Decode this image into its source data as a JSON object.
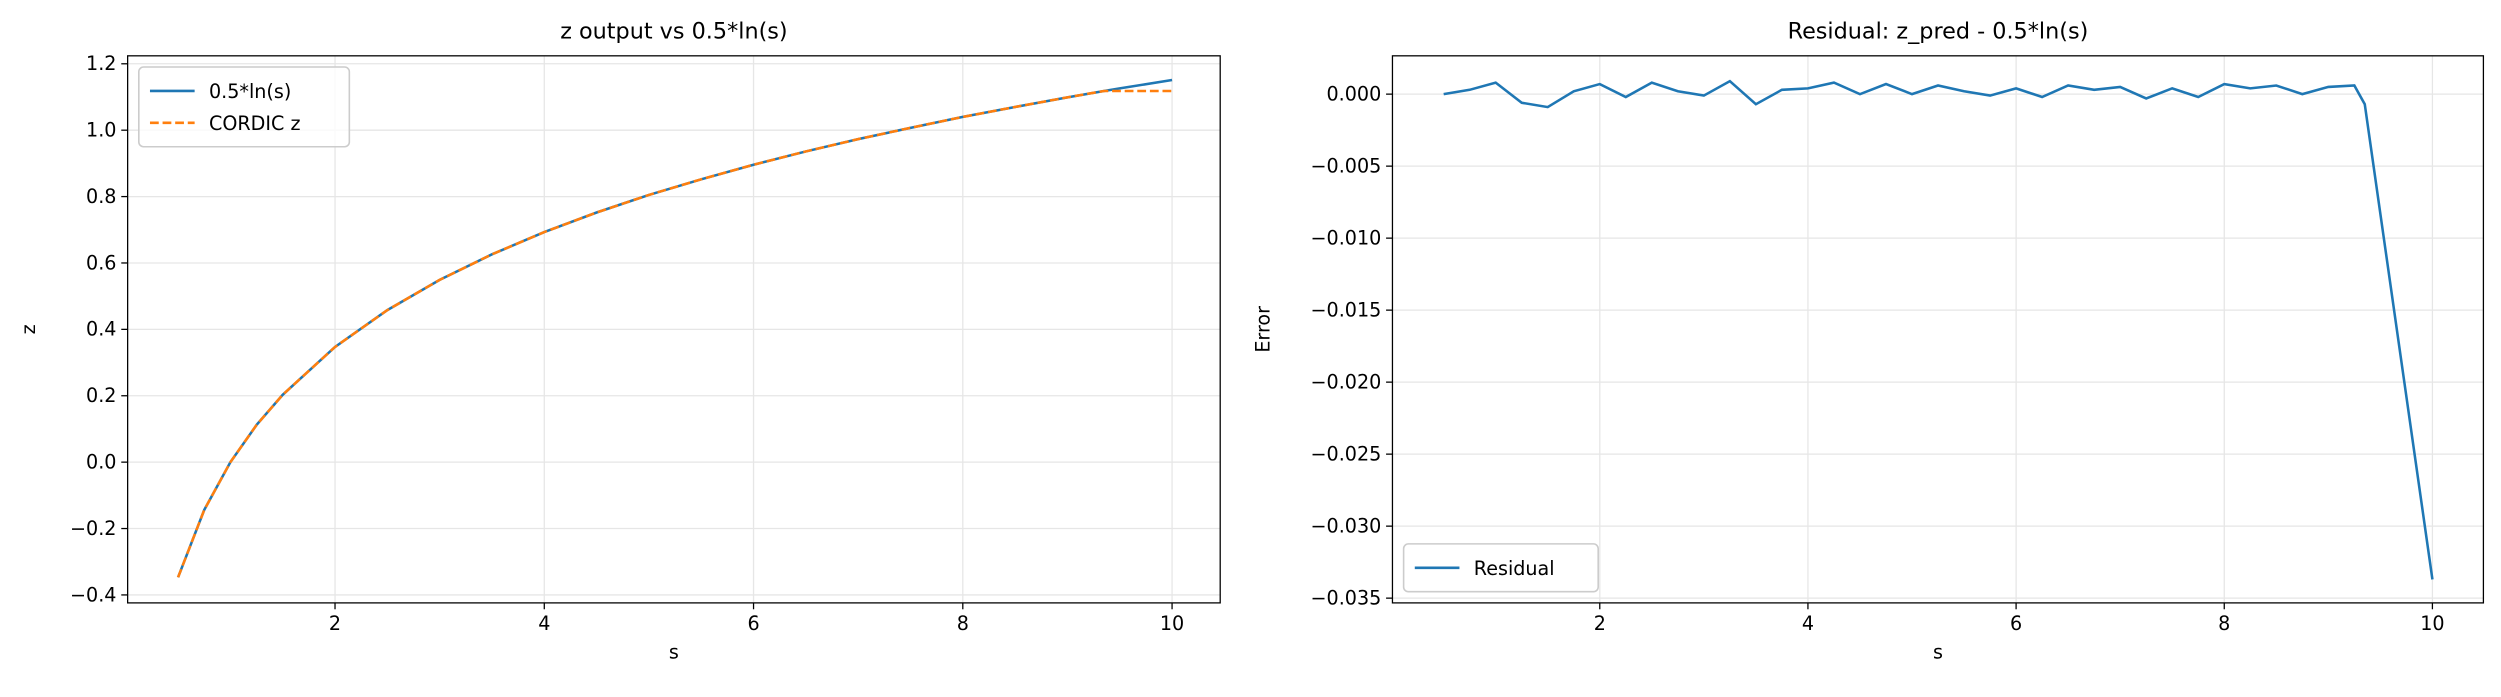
{
  "chart_data": [
    {
      "type": "line",
      "title": "z output vs 0.5*ln(s)",
      "x_label": "s",
      "y_label": "z",
      "x": [
        0.5,
        0.75,
        1,
        1.25,
        1.5,
        2,
        2.5,
        3,
        3.5,
        4,
        4.5,
        5,
        5.5,
        6,
        6.5,
        7,
        7.5,
        8,
        8.5,
        9,
        9.35,
        9.5,
        10
      ],
      "series": [
        {
          "name": "0.5*ln(s)",
          "color": "#1f77b4",
          "linestyle": "solid",
          "values": [
            -0.347,
            -0.144,
            0,
            0.112,
            0.203,
            0.347,
            0.458,
            0.549,
            0.626,
            0.693,
            0.752,
            0.805,
            0.852,
            0.896,
            0.936,
            0.973,
            1.007,
            1.04,
            1.07,
            1.099,
            1.118,
            1.126,
            1.151
          ]
        },
        {
          "name": "CORDIC z",
          "color": "#ff7f0e",
          "linestyle": "dashed",
          "values": [
            -0.347,
            -0.144,
            0,
            0.112,
            0.203,
            0.347,
            0.458,
            0.549,
            0.626,
            0.693,
            0.752,
            0.805,
            0.852,
            0.896,
            0.936,
            0.973,
            1.007,
            1.04,
            1.07,
            1.099,
            1.118,
            1.118,
            1.118
          ]
        }
      ],
      "xlim": [
        0.018,
        10.46
      ],
      "ylim": [
        -0.424,
        1.224
      ],
      "xticks": [
        2,
        4,
        6,
        8,
        10
      ],
      "yticks": [
        {
          "value": -0.4,
          "label": "−0.4"
        },
        {
          "value": -0.2,
          "label": "−0.2"
        },
        {
          "value": 0,
          "label": "0.0"
        },
        {
          "value": 0.2,
          "label": "0.2"
        },
        {
          "value": 0.4,
          "label": "0.4"
        },
        {
          "value": 0.6,
          "label": "0.6"
        },
        {
          "value": 0.8,
          "label": "0.8"
        },
        {
          "value": 1.0,
          "label": "1.0"
        },
        {
          "value": 1.2,
          "label": "1.2"
        }
      ],
      "grid": true,
      "legend": "upper left"
    },
    {
      "type": "line",
      "title": "Residual: z_pred - 0.5*ln(s)",
      "x_label": "s",
      "y_label": "Error",
      "x": [
        0.5,
        0.75,
        1,
        1.25,
        1.5,
        1.75,
        2,
        2.25,
        2.5,
        2.75,
        3,
        3.25,
        3.5,
        3.75,
        4,
        4.25,
        4.5,
        4.75,
        5,
        5.25,
        5.5,
        5.75,
        6,
        6.25,
        6.5,
        6.75,
        7,
        7.25,
        7.5,
        7.75,
        8,
        8.25,
        8.5,
        8.75,
        9,
        9.25,
        9.35,
        10
      ],
      "series": [
        {
          "name": "Residual",
          "color": "#1f77b4",
          "linestyle": "solid",
          "values": [
            0.0,
            0.0003,
            0.0008,
            -0.0006,
            -0.0009,
            0.0002,
            0.0007,
            -0.0002,
            0.0008,
            0.0002,
            -0.0001,
            0.0009,
            -0.0007,
            0.0003,
            0.0004,
            0.0008,
            0.0,
            0.0007,
            0.0,
            0.0006,
            0.0002,
            -0.0001,
            0.0004,
            -0.0002,
            0.0006,
            0.0003,
            0.0005,
            -0.0003,
            0.0004,
            -0.0002,
            0.0007,
            0.0004,
            0.0006,
            0.0,
            0.0005,
            0.0006,
            -0.0007,
            -0.0337
          ]
        }
      ],
      "xlim": [
        0.008,
        10.49
      ],
      "ylim": [
        -0.03533,
        0.00266
      ],
      "xticks": [
        2,
        4,
        6,
        8,
        10
      ],
      "yticks": [
        {
          "value": 0,
          "label": "0.000"
        },
        {
          "value": -0.005,
          "label": "−0.005"
        },
        {
          "value": -0.01,
          "label": "−0.010"
        },
        {
          "value": -0.015,
          "label": "−0.015"
        },
        {
          "value": -0.02,
          "label": "−0.020"
        },
        {
          "value": -0.025,
          "label": "−0.025"
        },
        {
          "value": -0.03,
          "label": "−0.030"
        },
        {
          "value": -0.035,
          "label": "−0.035"
        }
      ],
      "grid": true,
      "legend": "lower left"
    }
  ]
}
